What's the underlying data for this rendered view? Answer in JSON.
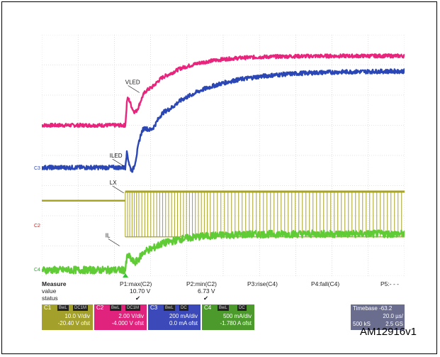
{
  "figure_id": "AM12916v1",
  "chart_data": {
    "type": "line",
    "title": "",
    "xlabel": "",
    "ylabel": "",
    "grid": true,
    "divisions": {
      "x": 10,
      "y": 8
    },
    "trigger_at_div": 2.3,
    "series": [
      {
        "name": "VLED",
        "channel": "C2",
        "color": "#e8247c",
        "kind": "step_ring",
        "pre_div": 5.0,
        "final_div": 7.3,
        "overshoot_div": 8.1,
        "tau_div": 0.9,
        "noise_div": 0.06
      },
      {
        "name": "ILED",
        "channel": "C3",
        "color": "#2b47b5",
        "kind": "step_ring",
        "pre_div": 3.6,
        "final_div": 6.8,
        "overshoot_div": 6.3,
        "tau_div": 1.3,
        "noise_div": 0.07
      },
      {
        "name": "LX",
        "channel": "C1",
        "color": "#a8a424",
        "kind": "switching",
        "low_div": 1.3,
        "high_div": 2.8,
        "pre_div": 2.5
      },
      {
        "name": "IL",
        "channel": "C4",
        "color": "#5fcc36",
        "kind": "step_ring",
        "pre_div": 0.2,
        "final_div": 1.4,
        "overshoot_div": 1.8,
        "tau_div": 0.8,
        "noise_div": 0.12
      }
    ],
    "channel_markers": [
      {
        "label": "C3",
        "color": "#2b47b5",
        "at_div": 3.55
      },
      {
        "label": "C2",
        "color": "#d81a1a",
        "at_div": 1.65
      },
      {
        "label": "C4",
        "color": "#2da52d",
        "at_div": 0.2
      }
    ]
  },
  "measure": {
    "heading": "Measure",
    "row_value": "value",
    "row_status": "status",
    "params": [
      {
        "name": "P1:max(C2)",
        "value": "10.70 V",
        "status": "✔"
      },
      {
        "name": "P2:min(C2)",
        "value": "6.73 V",
        "status": "✔"
      },
      {
        "name": "P3:rise(C4)",
        "value": "",
        "status": ""
      },
      {
        "name": "P4:fall(C4)",
        "value": "",
        "status": ""
      },
      {
        "name": "P5:- - -",
        "value": "",
        "status": ""
      }
    ]
  },
  "channels": [
    {
      "id": "C1",
      "color": "#a3a12c",
      "tag1": "BwL",
      "tag2": "DC1M",
      "line1": "10.0 V/div",
      "line2": "-20.40 V ofst"
    },
    {
      "id": "C2",
      "color": "#e0237c",
      "tag1": "BwL",
      "tag2": "DC1M",
      "line1": "2.00 V/div",
      "line2": "-4.000 V ofst"
    },
    {
      "id": "C3",
      "color": "#3b4ab8",
      "tag1": "BwL",
      "tag2": "DC",
      "line1": "200 mA/div",
      "line2": "0.0 mA ofst"
    },
    {
      "id": "C4",
      "color": "#4d9a2c",
      "tag1": "BwL",
      "tag2": "DC",
      "line1": "500 mA/div",
      "line2": "-1.780 A ofst"
    }
  ],
  "timebase": {
    "heading": "Timebase",
    "delay": "-63.2",
    "per_div": "20.0 µs/",
    "samples": "500 kS",
    "rate": "2.5 GS"
  }
}
